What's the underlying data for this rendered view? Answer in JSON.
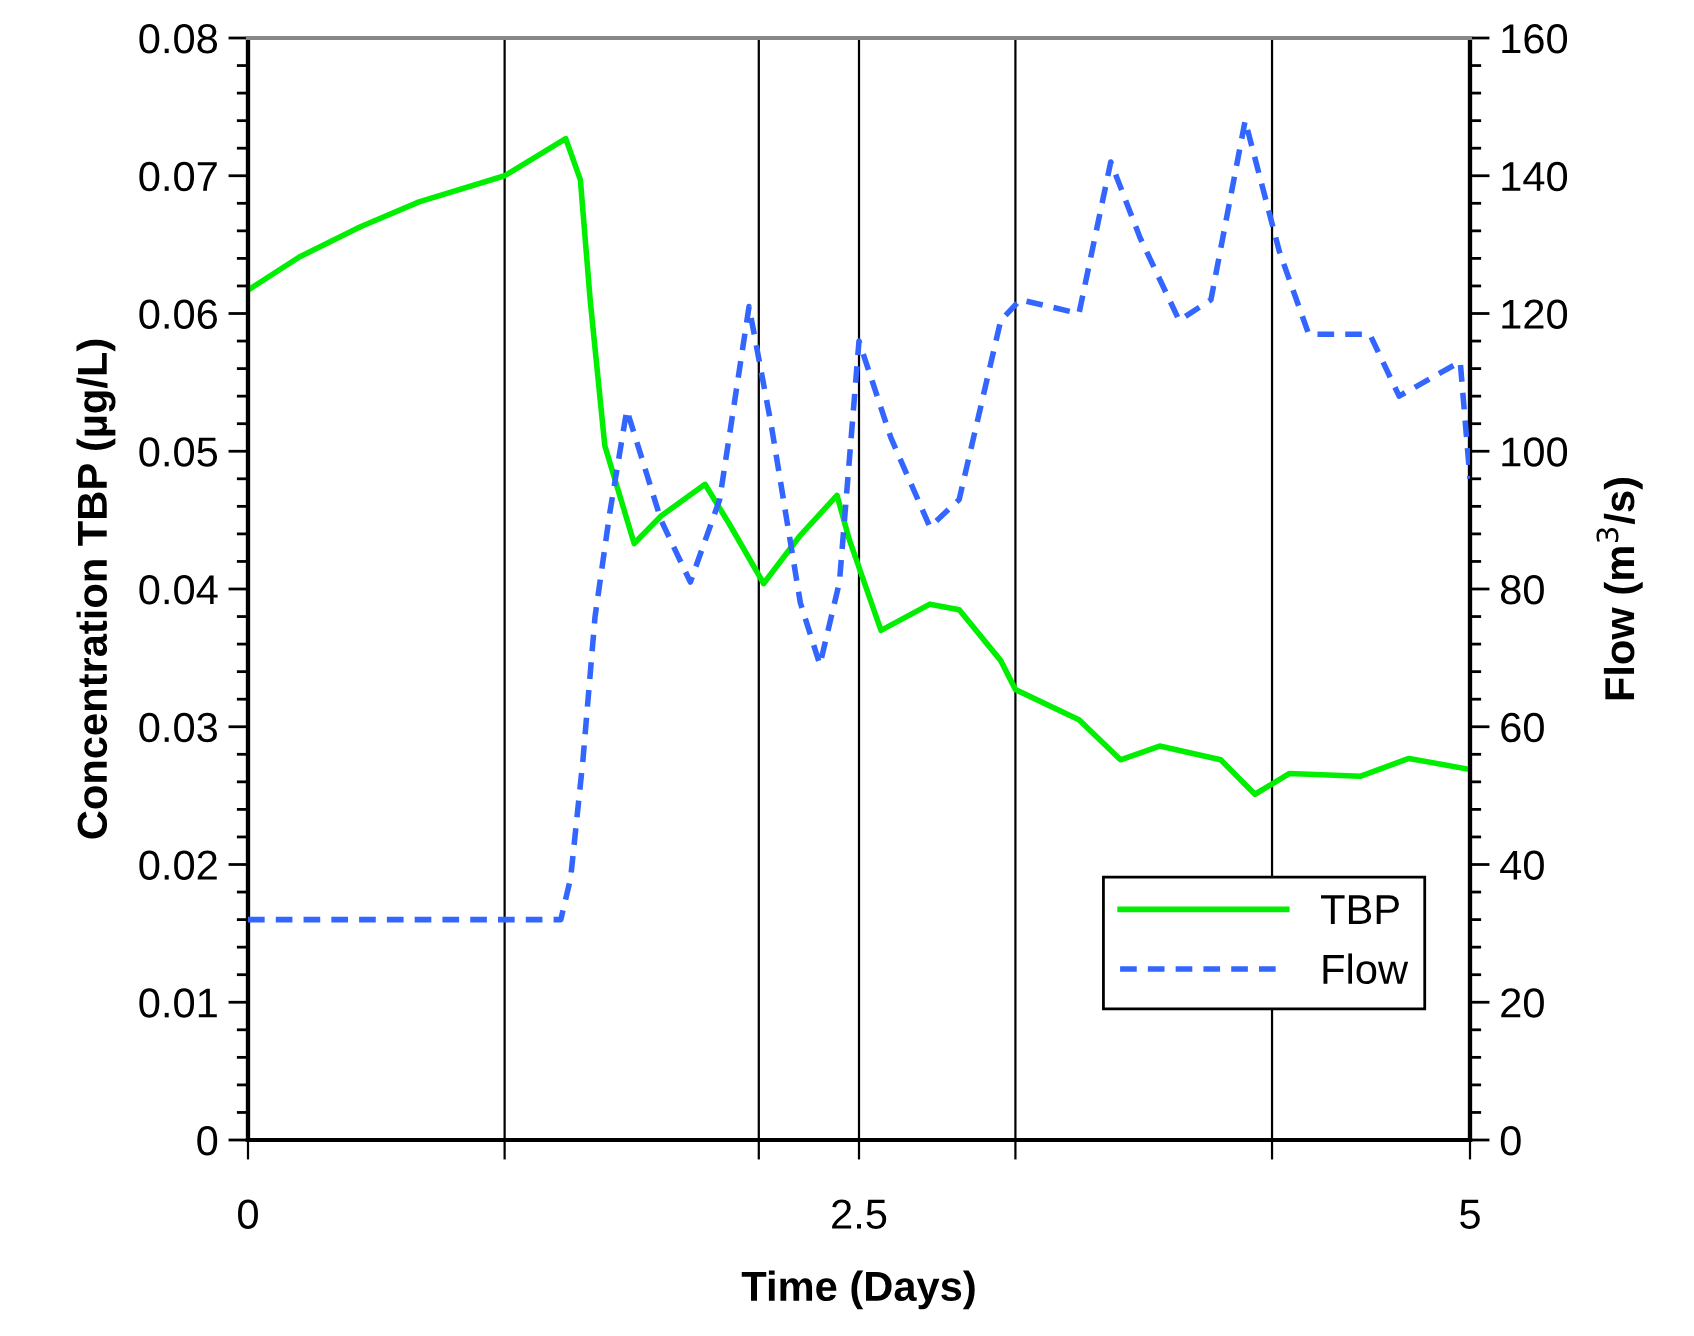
{
  "chart_data": {
    "type": "line",
    "xlabel": "Time (Days)",
    "ylabel": "Concentration TBP (µg/L)",
    "y2label": "Flow (m$^{3}$/s)",
    "xlim": [
      0,
      5
    ],
    "xticks": [
      {
        "value": 0,
        "label": "0"
      },
      {
        "value": 1.05,
        "label": null
      },
      {
        "value": 2.09,
        "label": null
      },
      {
        "value": 2.5,
        "label": "2.5"
      },
      {
        "value": 3.14,
        "label": null
      },
      {
        "value": 4.19,
        "label": null
      },
      {
        "value": 5,
        "label": "5"
      }
    ],
    "ylim": [
      0,
      0.08
    ],
    "yticks": [
      0,
      0.01,
      0.02,
      0.03,
      0.04,
      0.05,
      0.06,
      0.07,
      0.08
    ],
    "y2lim": [
      0,
      160
    ],
    "y2ticks": [
      0,
      20,
      40,
      60,
      80,
      100,
      120,
      140,
      160
    ],
    "grid": "x",
    "legend": "bottom right",
    "series": [
      {
        "name": "TBP",
        "color": "#00ee00",
        "line_style": "solid",
        "x": [
          0,
          0.21,
          0.46,
          0.7,
          1.05,
          1.3,
          1.36,
          1.4,
          1.46,
          1.58,
          1.69,
          1.87,
          1.97,
          2.11,
          2.26,
          2.41,
          2.46,
          2.59,
          2.79,
          2.91,
          3.08,
          3.14,
          3.4,
          3.57,
          3.73,
          3.98,
          4.12,
          4.26,
          4.55,
          4.75,
          5.0
        ],
        "values": [
          0.0617,
          0.0641,
          0.0663,
          0.0681,
          0.07,
          0.0727,
          0.0697,
          0.061,
          0.0504,
          0.0433,
          0.0453,
          0.0476,
          0.0447,
          0.0404,
          0.0439,
          0.0468,
          0.0436,
          0.037,
          0.0389,
          0.0385,
          0.0348,
          0.0327,
          0.0305,
          0.0276,
          0.0286,
          0.0276,
          0.0251,
          0.0266,
          0.0264,
          0.0277,
          0.0269
        ]
      },
      {
        "name": "Flow",
        "color": "#3366ff",
        "line_style": "dashed",
        "axis": "y2",
        "x": [
          0,
          1.28,
          1.32,
          1.37,
          1.42,
          1.48,
          1.55,
          1.69,
          1.81,
          1.93,
          2.05,
          2.14,
          2.26,
          2.34,
          2.42,
          2.5,
          2.63,
          2.79,
          2.91,
          3.08,
          3.16,
          3.4,
          3.53,
          3.65,
          3.81,
          3.94,
          4.08,
          4.22,
          4.34,
          4.59,
          4.71,
          4.96,
          5.0
        ],
        "values": [
          32,
          32,
          38,
          55,
          76,
          91,
          106,
          90,
          81,
          93,
          121,
          104,
          78,
          69,
          81,
          116,
          102,
          89,
          93,
          119,
          122,
          120,
          142,
          131,
          119,
          122,
          148,
          129,
          117,
          117,
          108,
          113,
          96
        ]
      }
    ]
  }
}
